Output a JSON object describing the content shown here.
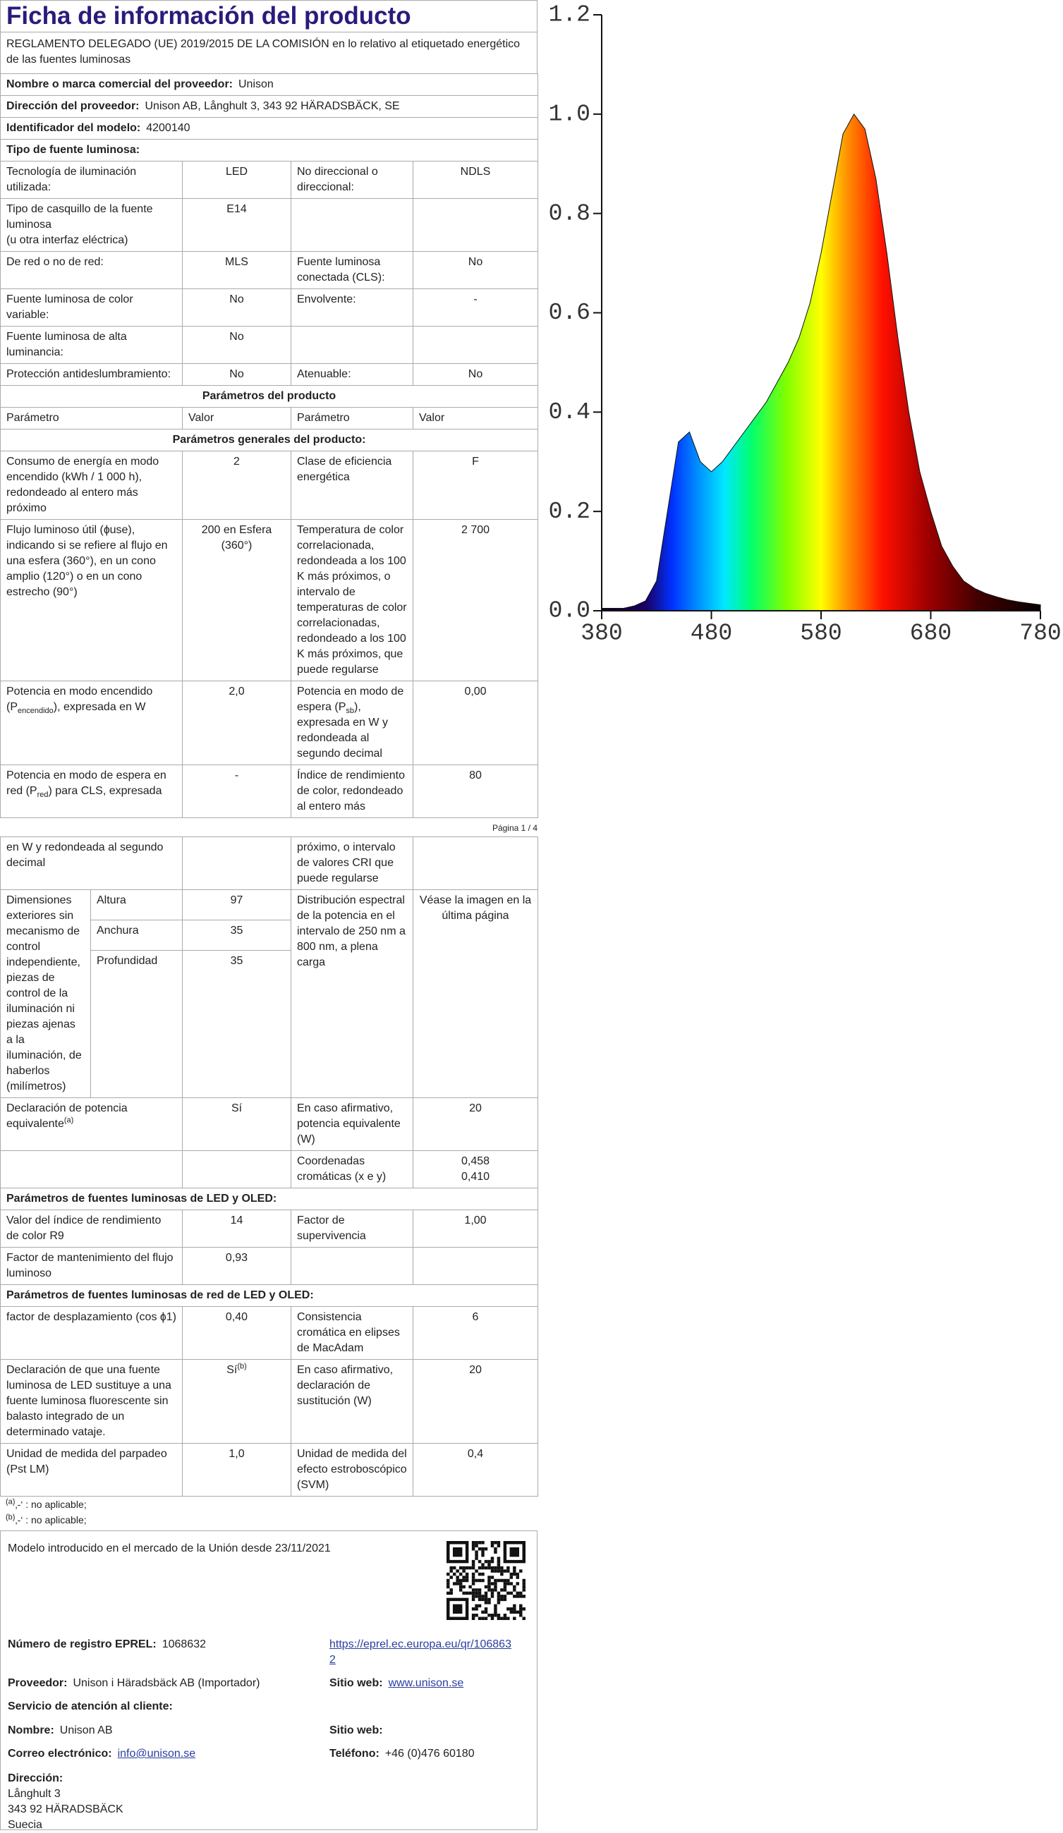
{
  "header": {
    "title": "Ficha de información del producto",
    "regulation": "REGLAMENTO DELEGADO (UE) 2019/2015 DE LA COMISIÓN en lo relativo al etiquetado energético de las fuentes luminosas"
  },
  "supplier": [
    {
      "label": "Nombre o marca comercial del proveedor:",
      "value": "Unison"
    },
    {
      "label": "Dirección del proveedor:",
      "value": "Unison AB, Långhult 3, 343 92 HÄRADSBÄCK, SE"
    },
    {
      "label": "Identificador del modelo:",
      "value": "4200140"
    }
  ],
  "light_source_type": {
    "heading": "Tipo de fuente luminosa:",
    "rows": [
      [
        "Tecnología de iluminación utilizada:",
        "LED",
        "No direccional o direccional:",
        "NDLS"
      ],
      [
        "Tipo de casquillo de la fuente luminosa\n(u otra interfaz eléctrica)",
        "E14",
        null,
        null
      ],
      [
        "De red o no de red:",
        "MLS",
        "Fuente luminosa conectada (CLS):",
        "No"
      ],
      [
        "Fuente luminosa de color variable:",
        "No",
        "Envolvente:",
        "-"
      ],
      [
        "Fuente luminosa de alta luminancia:",
        "No",
        null,
        null
      ],
      [
        "Protección antideslumbramiento:",
        "No",
        "Atenuable:",
        "No"
      ]
    ]
  },
  "parameters": {
    "heading": "Parámetros del producto",
    "column_headers": [
      "Parámetro",
      "Valor",
      "Parámetro",
      "Valor"
    ],
    "general_heading": "Parámetros generales del producto:",
    "rows": [
      [
        "Consumo de energía en modo encendido (kWh / 1 000 h), redondeado al entero más próximo",
        "2",
        "Clase de eficiencia energética",
        "F"
      ],
      [
        "Flujo luminoso útil (ɸuse), indicando si se refiere al flujo en una esfera (360°), en un cono amplio (120°) o en un cono estrecho (90°)",
        "200 en Esfera (360°)",
        "Temperatura de color correlacionada, redondeada a los 100 K más próximos, o intervalo de temperaturas de color correlacionadas, redondeado a los 100 K más próximos, que puede regularse",
        "2 700"
      ],
      [
        [
          "Potencia en modo encendido (P",
          {
            "sub": "encendido"
          },
          "), expresada en W"
        ],
        "2,0",
        [
          "Potencia en modo de espera (P",
          {
            "sub": "sb"
          },
          "), expresada en W y redondeada al segundo decimal"
        ],
        "0,00"
      ],
      [
        [
          "Potencia en modo de espera en red (P",
          {
            "sub": "red"
          },
          ") para CLS, expresada"
        ],
        "-",
        "Índice de rendimiento de color, redondeado al entero más",
        "80"
      ]
    ],
    "page_footer": "Página 1 / 4",
    "continued_rows": [
      [
        "en W y redondeada al segundo decimal",
        null,
        "próximo, o intervalo de valores CRI que puede regularse",
        null
      ]
    ],
    "dimensions": {
      "label": "Dimensiones exteriores sin mecanismo de control independiente, piezas de control de la iluminación ni piezas ajenas a la iluminación, de haberlos (milímetros)",
      "items": [
        [
          "Altura",
          "97"
        ],
        [
          "Anchura",
          "35"
        ],
        [
          "Profundidad",
          "35"
        ]
      ],
      "param": "Distribución espectral de la potencia en el intervalo de 250 nm a 800 nm, a plena carga",
      "value": "Véase la imagen en la última página"
    },
    "final_rows": [
      [
        [
          "Declaración de potencia equivalente",
          {
            "sup": "(a)"
          }
        ],
        "Sí",
        "En caso afirmativo, potencia equivalente (W)",
        "20"
      ],
      [
        null,
        null,
        "Coordenadas cromáticas (x e y)",
        "0,458\n0,410"
      ]
    ]
  },
  "led_oled": {
    "heading": "Parámetros de fuentes luminosas de LED y OLED:",
    "rows": [
      [
        "Valor del índice de rendimiento de color R9",
        "14",
        "Factor de supervivencia",
        "1,00"
      ],
      [
        "Factor de mantenimiento del flujo luminoso",
        "0,93",
        null,
        null
      ]
    ]
  },
  "mains_led_oled": {
    "heading": "Parámetros de fuentes luminosas de red de LED y OLED:",
    "rows": [
      [
        "factor de desplazamiento (cos ɸ1)",
        "0,40",
        "Consistencia cromática en elipses de MacAdam",
        "6"
      ],
      [
        "Declaración de que una fuente luminosa de LED sustituye a una fuente luminosa fluorescente sin balasto integrado de un determinado vataje.",
        [
          "Sí",
          {
            "sup": "(b)"
          }
        ],
        "En caso afirmativo, declaración de sustitución (W)",
        "20"
      ],
      [
        "Unidad de medida del parpadeo (Pst LM)",
        "1,0",
        "Unidad de medida del efecto estroboscópico (SVM)",
        "0,4"
      ]
    ]
  },
  "footnotes": [
    {
      "mark": "(a)",
      "text": "‚-‘ : no aplicable;"
    },
    {
      "mark": "(b)",
      "text": "‚-‘ : no aplicable;"
    }
  ],
  "eprel": {
    "market_date": "Modelo introducido en el mercado de la Unión desde 23/11/2021",
    "registration": {
      "label": "Número de registro EPREL:",
      "value": "1068632",
      "link": "https://eprel.ec.europa.eu/qr/1068632"
    },
    "supplier": {
      "label": "Proveedor:",
      "value": "Unison i Häradsbäck AB (Importador)"
    },
    "supplier_web": {
      "label": "Sitio web:",
      "value": "www.unison.se"
    },
    "service_heading": "Servicio de atención al cliente:",
    "name": {
      "label": "Nombre:",
      "value": "Unison AB"
    },
    "service_web": {
      "label": "Sitio web:"
    },
    "email": {
      "label": "Correo electrónico:",
      "value": "info@unison.se"
    },
    "phone": {
      "label": "Teléfono:",
      "value": "+46 (0)476 60180"
    },
    "address": {
      "label": "Dirección:",
      "lines": [
        "Långhult 3",
        "343 92 HÄRADSBÄCK",
        "Suecia"
      ]
    }
  },
  "chart_data": {
    "type": "area",
    "x": [
      380,
      390,
      400,
      410,
      420,
      430,
      440,
      450,
      460,
      470,
      480,
      490,
      500,
      510,
      520,
      530,
      540,
      550,
      560,
      570,
      580,
      590,
      600,
      610,
      620,
      630,
      640,
      650,
      660,
      670,
      680,
      690,
      700,
      710,
      720,
      730,
      740,
      750,
      760,
      770,
      780
    ],
    "values": [
      0.005,
      0.005,
      0.005,
      0.01,
      0.02,
      0.06,
      0.2,
      0.34,
      0.36,
      0.3,
      0.28,
      0.3,
      0.33,
      0.36,
      0.39,
      0.42,
      0.46,
      0.5,
      0.55,
      0.62,
      0.72,
      0.84,
      0.96,
      1.0,
      0.97,
      0.87,
      0.72,
      0.55,
      0.4,
      0.28,
      0.2,
      0.13,
      0.09,
      0.06,
      0.045,
      0.035,
      0.028,
      0.022,
      0.018,
      0.015,
      0.012
    ],
    "xlim": [
      380,
      780
    ],
    "ylim": [
      0,
      1.2
    ],
    "xticks": [
      380,
      480,
      580,
      680,
      780
    ],
    "yticks": [
      {
        "value": 0,
        "label": "0.0"
      },
      0.2,
      0.4,
      0.6,
      0.8,
      {
        "value": 1,
        "label": "1.0"
      },
      1.2
    ]
  }
}
